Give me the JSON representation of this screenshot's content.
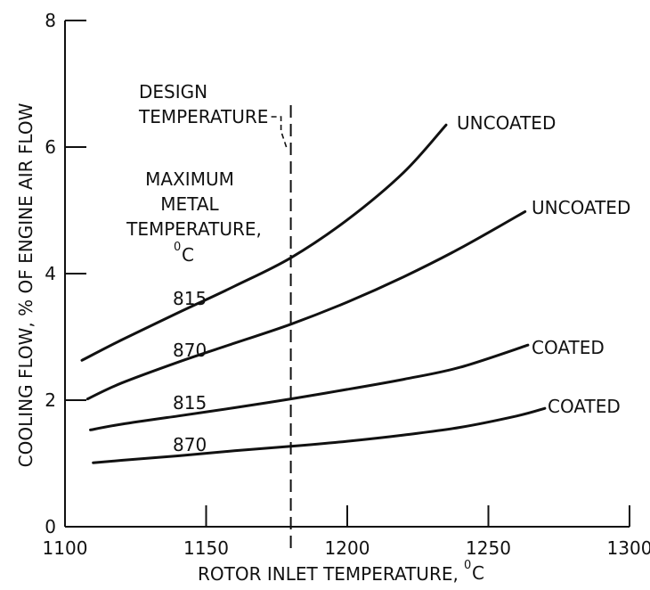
{
  "chart_data": {
    "type": "line",
    "xlabel": "ROTOR INLET TEMPERATURE,",
    "xlabel_unit": "C",
    "xlabel_unit_prefix": "0",
    "ylabel": "COOLING FLOW, % OF ENGINE AIR FLOW",
    "xlim": [
      1100,
      1300
    ],
    "ylim": [
      0,
      8
    ],
    "x_ticks": [
      "1100",
      "1150",
      "1200",
      "1250",
      "1300"
    ],
    "y_ticks": [
      "0",
      "2",
      "4",
      "6",
      "8"
    ],
    "grid": false,
    "design_temperature": {
      "x": 1180,
      "label_line1": "DESIGN",
      "label_line2": "TEMPERATURE"
    },
    "legend_title": [
      "MAXIMUM",
      "METAL",
      "TEMPERATURE,",
      "C"
    ],
    "legend_title_unit_prefix": "0",
    "series": [
      {
        "label": "815",
        "end_label": "UNCOATED",
        "x": [
          1106,
          1120,
          1140,
          1160,
          1180,
          1200,
          1220,
          1235
        ],
        "y": [
          2.63,
          2.95,
          3.38,
          3.8,
          4.25,
          4.85,
          5.6,
          6.35
        ]
      },
      {
        "label": "870",
        "end_label": "UNCOATED",
        "x": [
          1108,
          1120,
          1140,
          1160,
          1180,
          1200,
          1220,
          1240,
          1263
        ],
        "y": [
          2.02,
          2.27,
          2.6,
          2.9,
          3.2,
          3.55,
          3.95,
          4.4,
          4.98
        ]
      },
      {
        "label": "815",
        "end_label": "COATED",
        "x": [
          1109,
          1120,
          1140,
          1160,
          1180,
          1200,
          1220,
          1240,
          1264
        ],
        "y": [
          1.53,
          1.62,
          1.75,
          1.88,
          2.02,
          2.17,
          2.33,
          2.52,
          2.87
        ]
      },
      {
        "label": "870",
        "end_label": "COATED",
        "x": [
          1110,
          1120,
          1140,
          1160,
          1180,
          1200,
          1220,
          1240,
          1260,
          1270
        ],
        "y": [
          1.01,
          1.05,
          1.12,
          1.2,
          1.27,
          1.35,
          1.45,
          1.57,
          1.75,
          1.87
        ]
      }
    ]
  }
}
